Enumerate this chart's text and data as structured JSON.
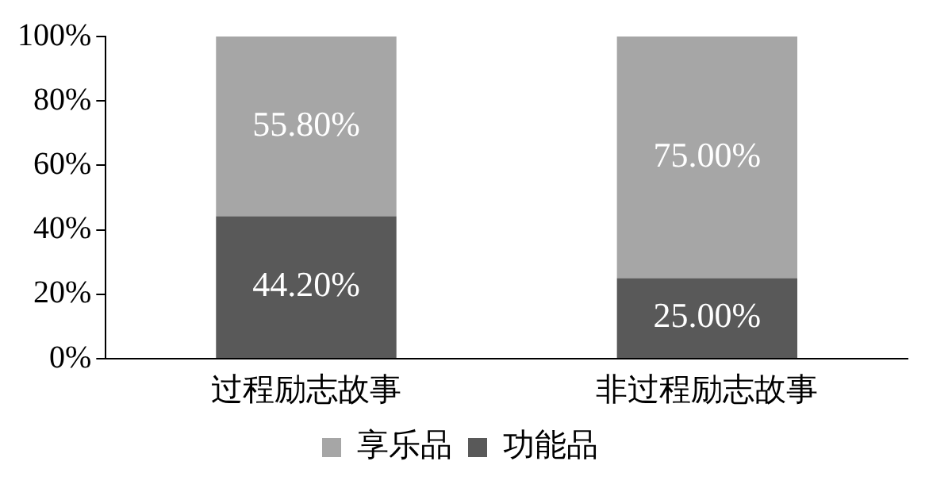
{
  "chart_data": {
    "type": "bar",
    "stacked": true,
    "categories": [
      "过程励志故事",
      "非过程励志故事"
    ],
    "series": [
      {
        "name": "功能品",
        "color": "#595959",
        "values": [
          44.2,
          25
        ],
        "value_labels": [
          "44.20%",
          "25.00%"
        ]
      },
      {
        "name": "享乐品",
        "color": "#a6a6a6",
        "values": [
          55.8,
          75
        ],
        "value_labels": [
          "55.80%",
          "75.00%"
        ]
      }
    ],
    "ylim": [
      0,
      100
    ],
    "yticks": [
      {
        "value": 0,
        "label": "0%"
      },
      {
        "value": 20,
        "label": "20%"
      },
      {
        "value": 40,
        "label": "40%"
      },
      {
        "value": 60,
        "label": "60%"
      },
      {
        "value": 80,
        "label": "80%"
      },
      {
        "value": 100,
        "label": "100%"
      }
    ],
    "grid": false,
    "legend": "bottom"
  }
}
